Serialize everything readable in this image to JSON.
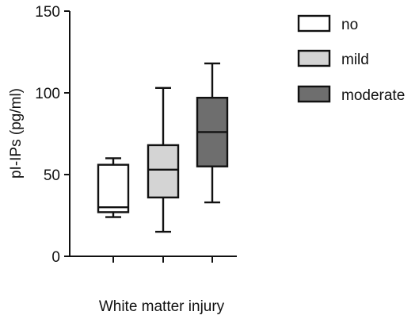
{
  "chart_data": {
    "type": "box",
    "xlabel": "White matter injury",
    "ylabel": "pI-IPs (pg/ml)",
    "ylim": [
      0,
      150
    ],
    "yticks": [
      0,
      50,
      100,
      150
    ],
    "grid": false,
    "legend_position": "top-right",
    "groups": [
      {
        "name": "no",
        "color": "#ffffff",
        "min": 24,
        "q1": 27,
        "median": 30,
        "q3": 56,
        "max": 60
      },
      {
        "name": "mild",
        "color": "#d4d4d4",
        "min": 15,
        "q1": 36,
        "median": 53,
        "q3": 68,
        "max": 103
      },
      {
        "name": "moderate",
        "color": "#6e6e6e",
        "min": 33,
        "q1": 55,
        "median": 76,
        "q3": 97,
        "max": 118
      }
    ]
  }
}
